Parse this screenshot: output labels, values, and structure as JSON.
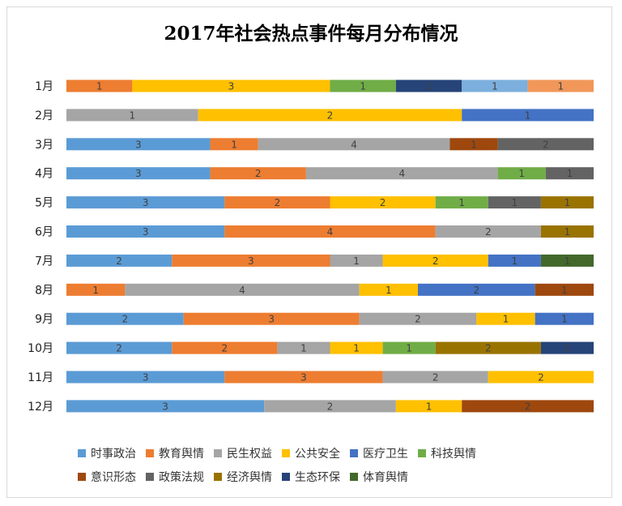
{
  "chart_data": {
    "type": "bar",
    "orientation": "horizontal",
    "stacked": true,
    "normalized": true,
    "title": "2017年社会热点事件每月分布情况",
    "categories": [
      "1月",
      "2月",
      "3月",
      "4月",
      "5月",
      "6月",
      "7月",
      "8月",
      "9月",
      "10月",
      "11月",
      "12月"
    ],
    "series": [
      {
        "name": "时事政治",
        "color": "#5B9BD5",
        "values": [
          0,
          0,
          3,
          3,
          3,
          3,
          2,
          0,
          2,
          2,
          3,
          3
        ]
      },
      {
        "name": "教育舆情",
        "color": "#ED7D31",
        "values": [
          1,
          0,
          1,
          2,
          2,
          4,
          3,
          1,
          3,
          2,
          3,
          0
        ]
      },
      {
        "name": "民生权益",
        "color": "#A5A5A5",
        "values": [
          0,
          1,
          4,
          4,
          0,
          2,
          1,
          4,
          2,
          1,
          2,
          2
        ]
      },
      {
        "name": "公共安全",
        "color": "#FFC000",
        "values": [
          3,
          2,
          0,
          0,
          2,
          0,
          2,
          1,
          1,
          1,
          2,
          1
        ]
      },
      {
        "name": "医疗卫生",
        "color": "#4472C4",
        "values": [
          0,
          1,
          0,
          0,
          0,
          0,
          1,
          2,
          1,
          0,
          0,
          0
        ]
      },
      {
        "name": "科技舆情",
        "color": "#70AD47",
        "values": [
          1,
          0,
          0,
          1,
          1,
          0,
          0,
          0,
          0,
          1,
          0,
          0
        ]
      },
      {
        "name": "意识形态",
        "color": "#9E480E",
        "values": [
          0,
          0,
          1,
          0,
          0,
          0,
          0,
          1,
          0,
          0,
          0,
          2
        ]
      },
      {
        "name": "政策法规",
        "color": "#636363",
        "values": [
          0,
          0,
          2,
          1,
          1,
          0,
          0,
          0,
          0,
          0,
          0,
          0
        ]
      },
      {
        "name": "经济舆情",
        "color": "#997300",
        "values": [
          0,
          0,
          0,
          0,
          1,
          1,
          0,
          0,
          0,
          2,
          0,
          0
        ]
      },
      {
        "name": "生态环保",
        "color": "#264478",
        "values": [
          1,
          0,
          0,
          0,
          0,
          0,
          0,
          0,
          0,
          1,
          0,
          0
        ]
      },
      {
        "name": "体育舆情",
        "color": "#43682B",
        "values": [
          0,
          0,
          0,
          0,
          0,
          0,
          1,
          0,
          0,
          0,
          0,
          0
        ]
      },
      {
        "name": "",
        "color": "#7CAFDD",
        "values": [
          1,
          0,
          0,
          0,
          0,
          0,
          0,
          0,
          0,
          0,
          0,
          0
        ]
      },
      {
        "name": "",
        "color": "#F1975A",
        "values": [
          1,
          0,
          0,
          0,
          0,
          0,
          0,
          0,
          0,
          0,
          0,
          0
        ]
      }
    ],
    "legend_position": "bottom",
    "grid": false
  }
}
